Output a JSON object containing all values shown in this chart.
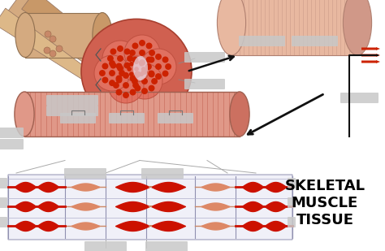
{
  "title": "SKELETAL\nMUSCLE\nTISSUE",
  "title_fontsize": 13,
  "title_color": "#000000",
  "bg_color": "#ffffff",
  "muscle_red": "#cc2200",
  "fiber_bg": "#ecc8b8",
  "fiber_stripe": "#c83020",
  "fiber_dark": "#b84030",
  "peach": "#e8b8a0",
  "tan1": "#d4aa80",
  "tan2": "#c89868",
  "tan3": "#b88858",
  "sarcomere_bg": "#e8e8f0",
  "sarcomere_line": "#aaaacc",
  "sarcomere_red": "#cc1100",
  "label_bg": "#cccccc",
  "arrow_color": "#111111"
}
